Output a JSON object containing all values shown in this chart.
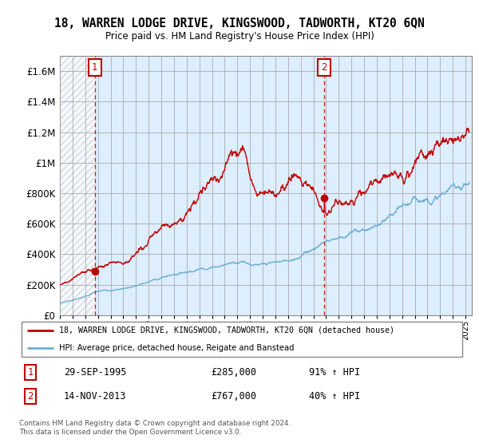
{
  "title": "18, WARREN LODGE DRIVE, KINGSWOOD, TADWORTH, KT20 6QN",
  "subtitle": "Price paid vs. HM Land Registry's House Price Index (HPI)",
  "ylim": [
    0,
    1700000
  ],
  "yticks": [
    0,
    200000,
    400000,
    600000,
    800000,
    1000000,
    1200000,
    1400000,
    1600000
  ],
  "sale1_date_str": "29-SEP-1995",
  "sale1_price": 285000,
  "sale1_hpi_pct": "91% ↑ HPI",
  "sale1_x": 1995.75,
  "sale2_date_str": "14-NOV-2013",
  "sale2_price": 767000,
  "sale2_hpi_pct": "40% ↑ HPI",
  "sale2_x": 2013.87,
  "hpi_color": "#6baed6",
  "price_color": "#c00000",
  "bg_color": "#ddeeff",
  "grid_color": "#aaaaaa",
  "legend_label_price": "18, WARREN LODGE DRIVE, KINGSWOOD, TADWORTH, KT20 6QN (detached house)",
  "legend_label_hpi": "HPI: Average price, detached house, Reigate and Banstead",
  "footer": "Contains HM Land Registry data © Crown copyright and database right 2024.\nThis data is licensed under the Open Government Licence v3.0.",
  "xmin": 1993,
  "xmax": 2025.5
}
